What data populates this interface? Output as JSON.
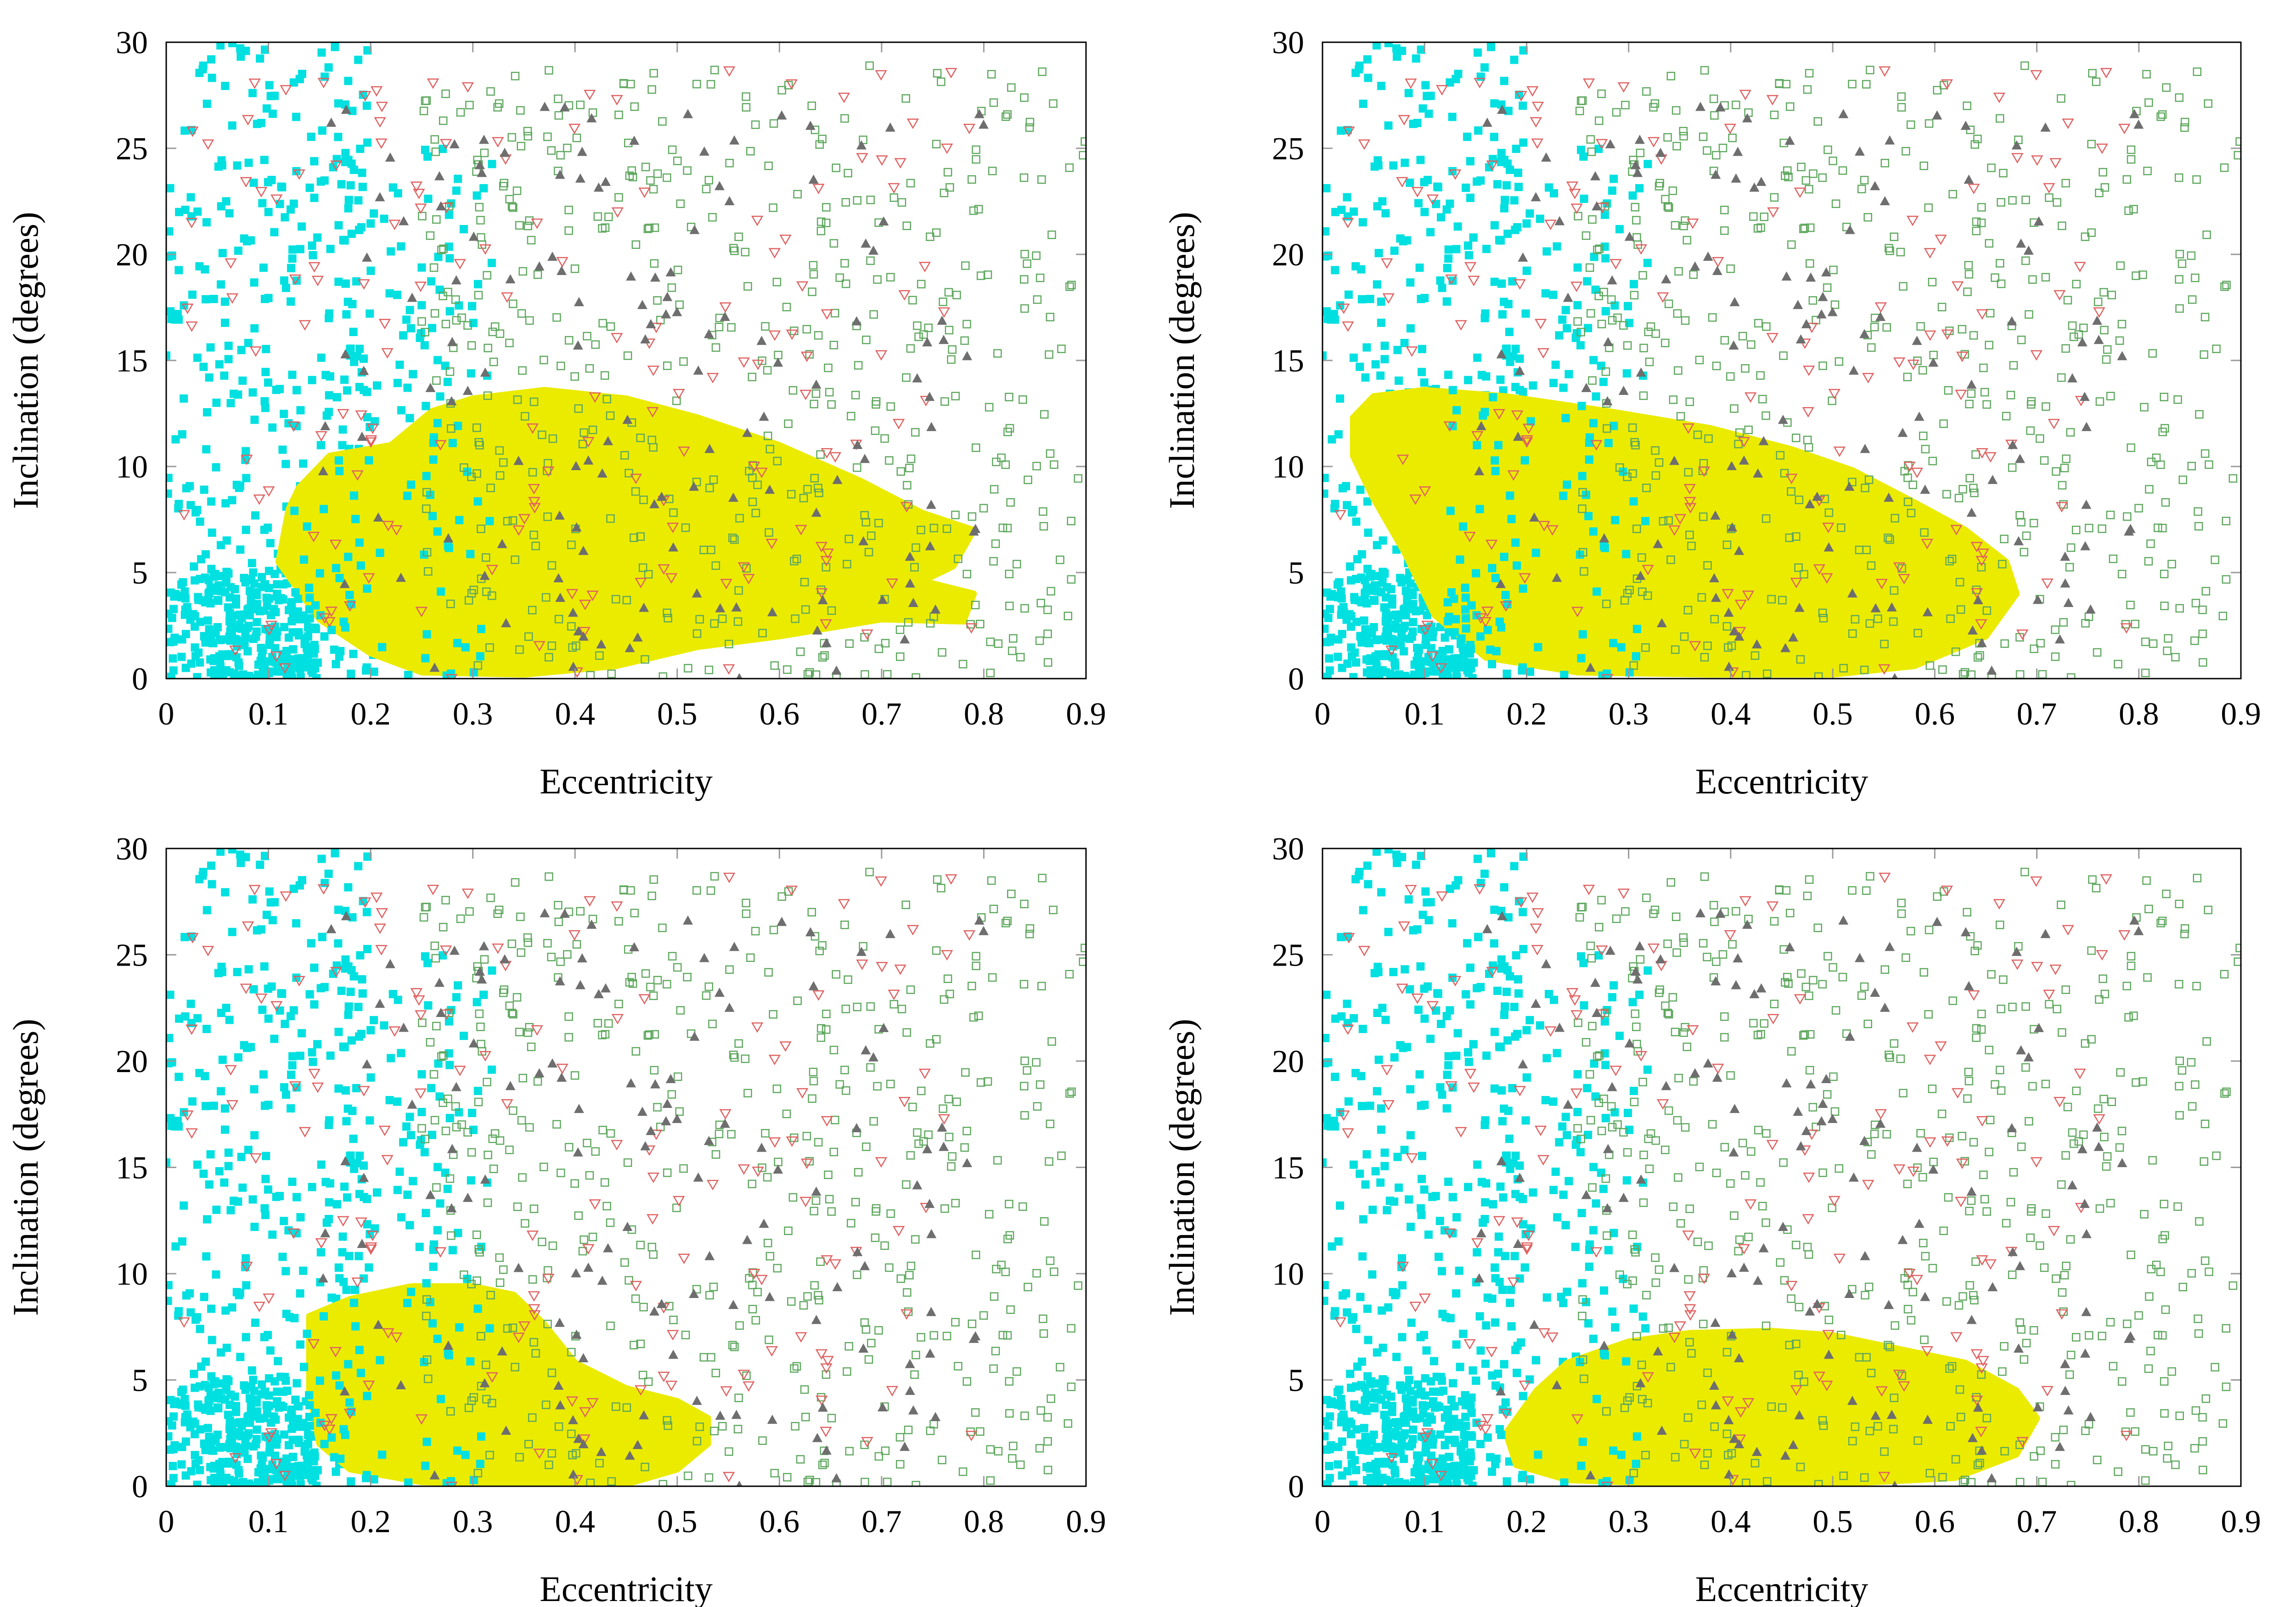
{
  "figure": {
    "panels": [
      "top-left",
      "top-right",
      "bottom-left",
      "bottom-right"
    ]
  },
  "colors": {
    "cloud": "#EBEB00",
    "cyan_points": "#00E0E0",
    "gray_triangles": "#6E6E6E",
    "red_triangles": "#E06060",
    "green_squares": "#5FA85F",
    "frame": "#000000",
    "tick_grid": "#9a9a9a"
  },
  "chart_data": [
    {
      "type": "scatter",
      "id": "top-left",
      "xlabel": "Eccentricity",
      "ylabel": "Inclination (degrees)",
      "xlim": [
        0,
        0.9
      ],
      "ylim": [
        0,
        30
      ],
      "xticks": [
        "0",
        "0.1",
        "0.2",
        "0.3",
        "0.4",
        "0.5",
        "0.6",
        "0.7",
        "0.8",
        "0.9"
      ],
      "yticks": [
        "0",
        "5",
        "10",
        "15",
        "20",
        "25",
        "30"
      ],
      "yellow_region": [
        [
          0.13,
          9.0
        ],
        [
          0.16,
          10.5
        ],
        [
          0.22,
          11.0
        ],
        [
          0.26,
          12.6
        ],
        [
          0.3,
          13.2
        ],
        [
          0.37,
          13.6
        ],
        [
          0.45,
          13.2
        ],
        [
          0.52,
          12.3
        ],
        [
          0.6,
          11.0
        ],
        [
          0.68,
          9.3
        ],
        [
          0.74,
          7.8
        ],
        [
          0.79,
          7.0
        ],
        [
          0.77,
          5.3
        ],
        [
          0.74,
          4.6
        ],
        [
          0.79,
          4.0
        ],
        [
          0.78,
          2.7
        ],
        [
          0.7,
          2.8
        ],
        [
          0.6,
          2.0
        ],
        [
          0.52,
          1.5
        ],
        [
          0.44,
          0.6
        ],
        [
          0.35,
          0.2
        ],
        [
          0.25,
          0.3
        ],
        [
          0.2,
          1.2
        ],
        [
          0.15,
          2.8
        ],
        [
          0.11,
          5.5
        ],
        [
          0.12,
          8.0
        ]
      ]
    },
    {
      "type": "scatter",
      "id": "top-right",
      "xlabel": "Eccentricity",
      "ylabel": "Inclination (degrees)",
      "xlim": [
        0,
        0.9
      ],
      "ylim": [
        0,
        30
      ],
      "xticks": [
        "0",
        "0.1",
        "0.2",
        "0.3",
        "0.4",
        "0.5",
        "0.6",
        "0.7",
        "0.8",
        "0.9"
      ],
      "yticks": [
        "0",
        "5",
        "10",
        "15",
        "20",
        "25",
        "30"
      ],
      "yellow_region": [
        [
          0.03,
          12.3
        ],
        [
          0.05,
          13.3
        ],
        [
          0.1,
          13.6
        ],
        [
          0.18,
          13.3
        ],
        [
          0.28,
          12.6
        ],
        [
          0.38,
          11.8
        ],
        [
          0.46,
          10.8
        ],
        [
          0.52,
          9.8
        ],
        [
          0.58,
          8.3
        ],
        [
          0.63,
          7.0
        ],
        [
          0.67,
          5.5
        ],
        [
          0.68,
          4.0
        ],
        [
          0.65,
          2.0
        ],
        [
          0.58,
          0.6
        ],
        [
          0.5,
          0.2
        ],
        [
          0.38,
          0.2
        ],
        [
          0.25,
          0.3
        ],
        [
          0.16,
          1.0
        ],
        [
          0.11,
          3.0
        ],
        [
          0.08,
          6.0
        ],
        [
          0.05,
          8.5
        ],
        [
          0.03,
          10.5
        ]
      ]
    },
    {
      "type": "scatter",
      "id": "bottom-left",
      "xlabel": "Eccentricity",
      "ylabel": "Inclination (degrees)",
      "xlim": [
        0,
        0.9
      ],
      "ylim": [
        0,
        30
      ],
      "xticks": [
        "0",
        "0.1",
        "0.2",
        "0.3",
        "0.4",
        "0.5",
        "0.6",
        "0.7",
        "0.8",
        "0.9"
      ],
      "yticks": [
        "0",
        "5",
        "10",
        "15",
        "20",
        "25",
        "30"
      ],
      "yellow_region": [
        [
          0.14,
          8.0
        ],
        [
          0.18,
          8.8
        ],
        [
          0.24,
          9.4
        ],
        [
          0.3,
          9.4
        ],
        [
          0.34,
          9.0
        ],
        [
          0.37,
          7.6
        ],
        [
          0.4,
          5.8
        ],
        [
          0.45,
          4.6
        ],
        [
          0.5,
          4.0
        ],
        [
          0.53,
          3.2
        ],
        [
          0.53,
          2.0
        ],
        [
          0.5,
          0.8
        ],
        [
          0.45,
          0.1
        ],
        [
          0.35,
          0.1
        ],
        [
          0.25,
          0.2
        ],
        [
          0.18,
          0.8
        ],
        [
          0.15,
          2.0
        ],
        [
          0.14,
          4.5
        ]
      ]
    },
    {
      "type": "scatter",
      "id": "bottom-right",
      "xlabel": "Eccentricity",
      "ylabel": "Inclination (degrees)",
      "xlim": [
        0,
        0.9
      ],
      "ylim": [
        0,
        30
      ],
      "xticks": [
        "0",
        "0.1",
        "0.2",
        "0.3",
        "0.4",
        "0.5",
        "0.6",
        "0.7",
        "0.8",
        "0.9"
      ],
      "yticks": [
        "0",
        "5",
        "10",
        "15",
        "20",
        "25",
        "30"
      ],
      "yellow_region": [
        [
          0.18,
          2.5
        ],
        [
          0.21,
          4.5
        ],
        [
          0.24,
          5.8
        ],
        [
          0.3,
          6.8
        ],
        [
          0.36,
          7.2
        ],
        [
          0.44,
          7.3
        ],
        [
          0.5,
          7.1
        ],
        [
          0.56,
          6.5
        ],
        [
          0.63,
          5.8
        ],
        [
          0.68,
          4.5
        ],
        [
          0.7,
          3.2
        ],
        [
          0.68,
          1.5
        ],
        [
          0.62,
          0.4
        ],
        [
          0.5,
          0.1
        ],
        [
          0.35,
          0.1
        ],
        [
          0.24,
          0.3
        ],
        [
          0.19,
          1.0
        ]
      ]
    }
  ]
}
